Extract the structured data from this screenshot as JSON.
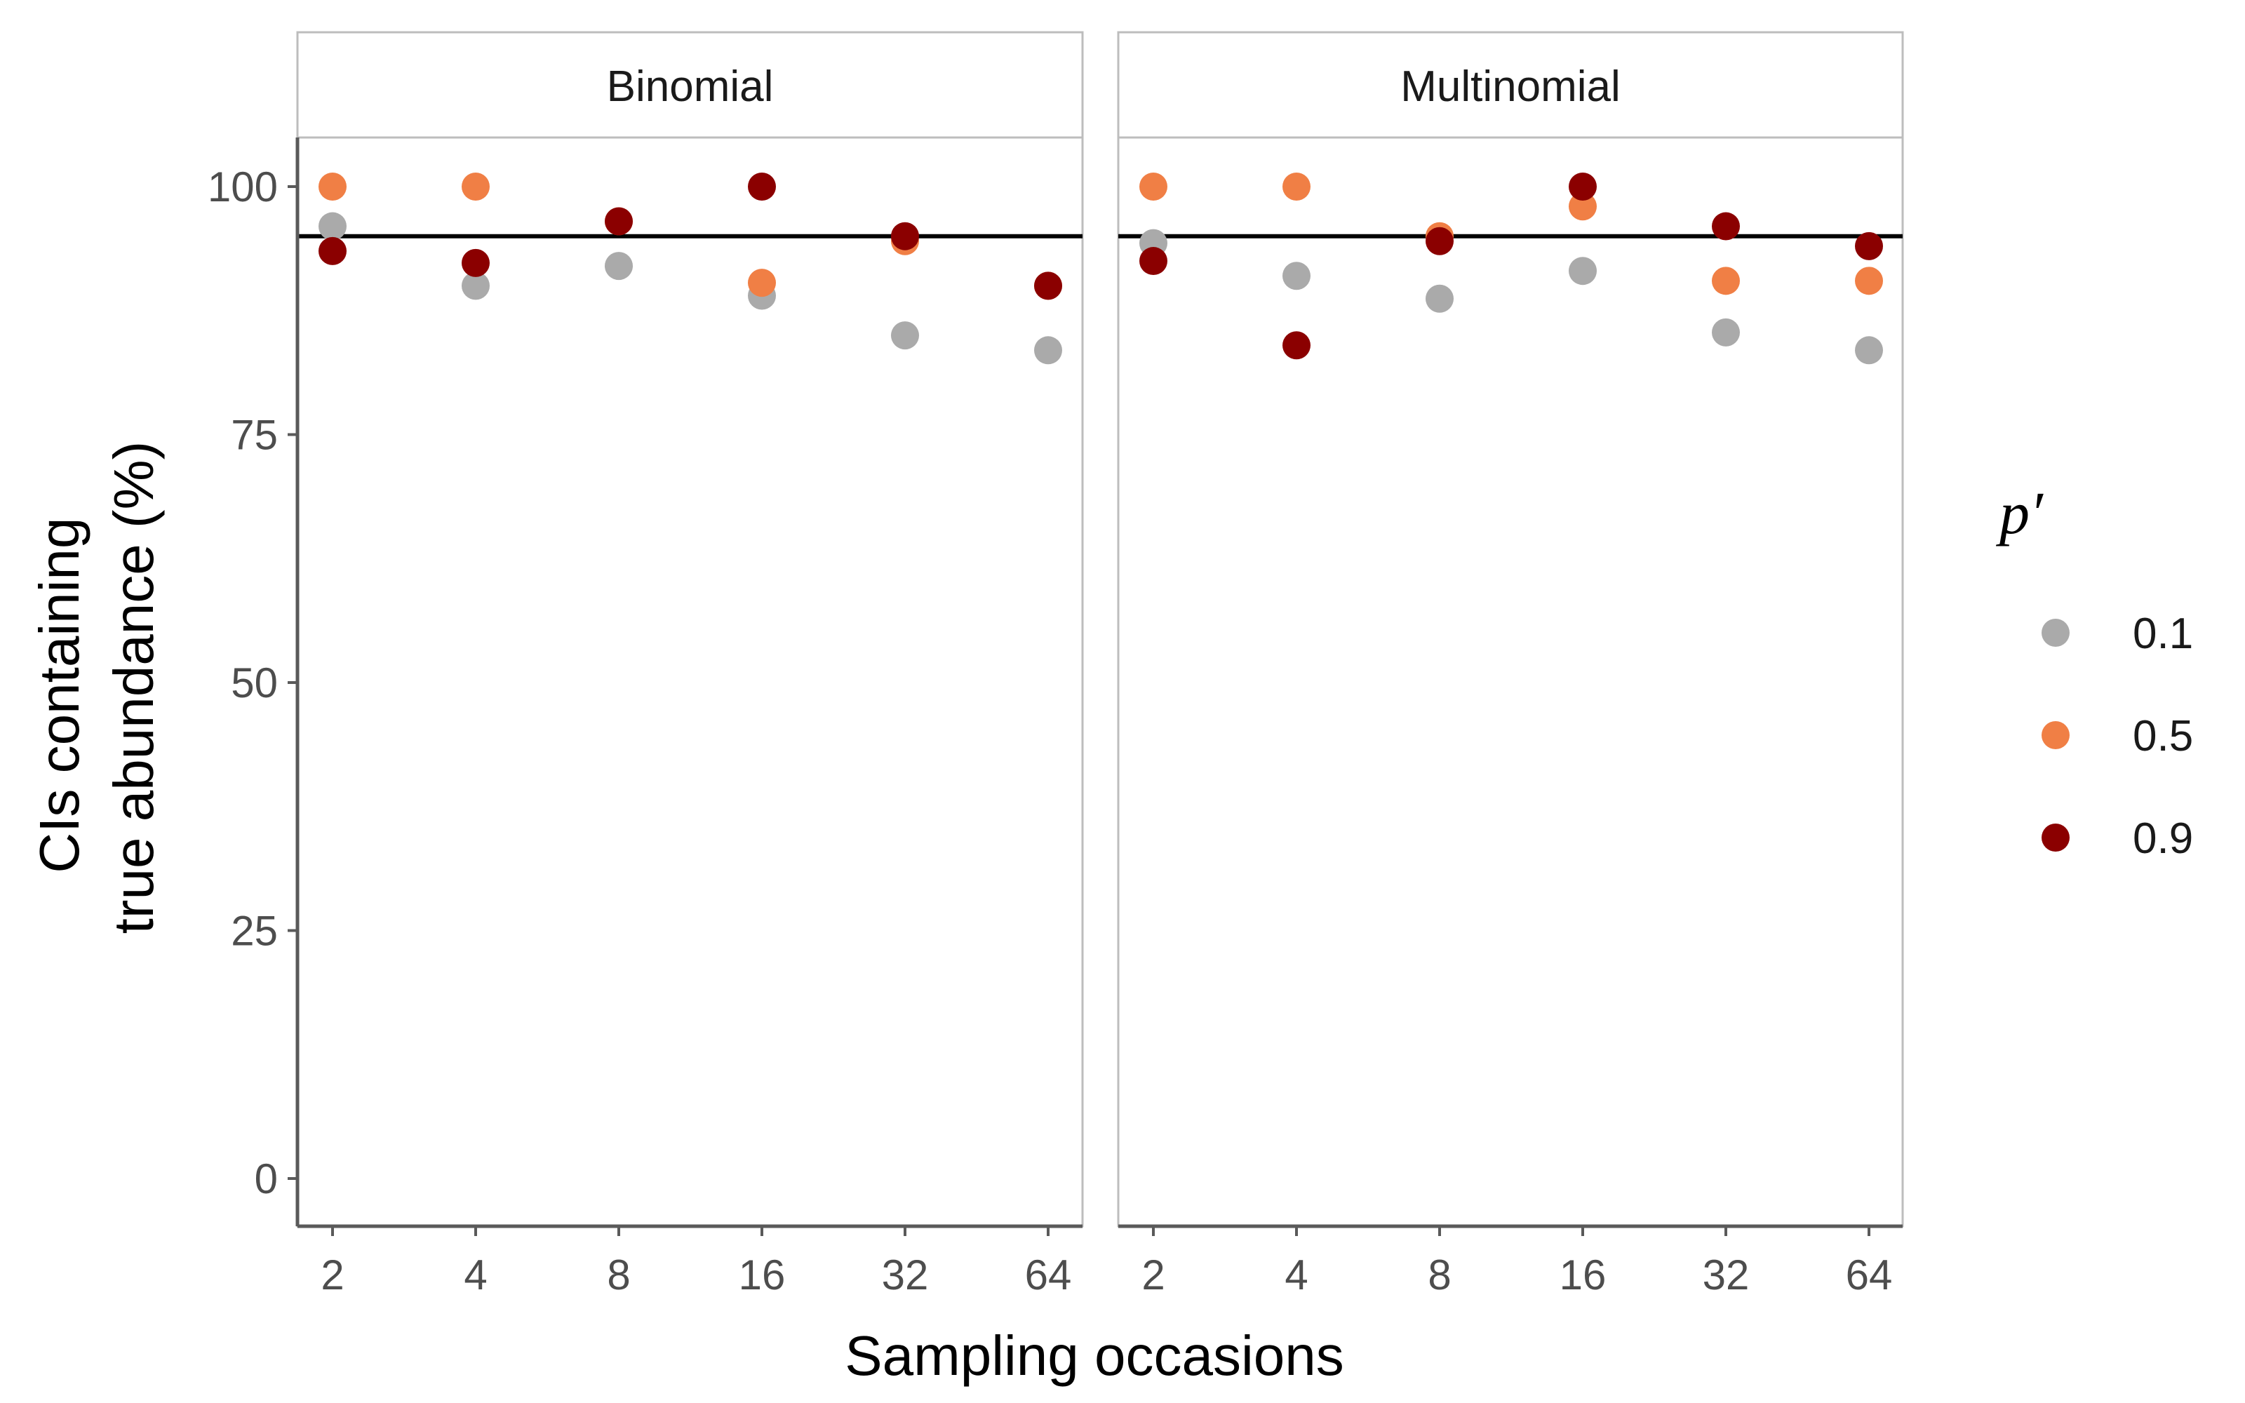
{
  "chart_data": {
    "type": "scatter",
    "ylabel": [
      "CIs containing",
      "true abundance (%)"
    ],
    "xlabel": "Sampling occasions",
    "x_categories": [
      "2",
      "4",
      "8",
      "16",
      "32",
      "64"
    ],
    "y_ticks": [
      0,
      25,
      50,
      75,
      100
    ],
    "ylim": [
      -5,
      115
    ],
    "reference_line": 95,
    "legend": {
      "title": "p′",
      "position": "right",
      "entries": [
        {
          "label": "0.1",
          "color": "#aaaaaa"
        },
        {
          "label": "0.5",
          "color": "#f07f45"
        },
        {
          "label": "0.9",
          "color": "#8b0000"
        }
      ]
    },
    "panels": [
      {
        "title": "Binomial",
        "series": [
          {
            "name": "0.1",
            "color": "#aaaaaa",
            "values": [
              96,
              90,
              92,
              89,
              85,
              83.5
            ]
          },
          {
            "name": "0.5",
            "color": "#f07f45",
            "values": [
              100,
              100,
              96.5,
              90.3,
              94.5,
              90
            ]
          },
          {
            "name": "0.9",
            "color": "#8b0000",
            "values": [
              93.5,
              92.3,
              96.5,
              100,
              95,
              90
            ]
          }
        ]
      },
      {
        "title": "Multinomial",
        "series": [
          {
            "name": "0.1",
            "color": "#aaaaaa",
            "values": [
              94.3,
              91,
              88.7,
              91.5,
              85.3,
              83.5
            ]
          },
          {
            "name": "0.5",
            "color": "#f07f45",
            "values": [
              100,
              100,
              95,
              98,
              90.5,
              90.5
            ]
          },
          {
            "name": "0.9",
            "color": "#8b0000",
            "values": [
              92.5,
              84,
              94.5,
              100,
              96,
              94
            ]
          }
        ]
      }
    ]
  }
}
